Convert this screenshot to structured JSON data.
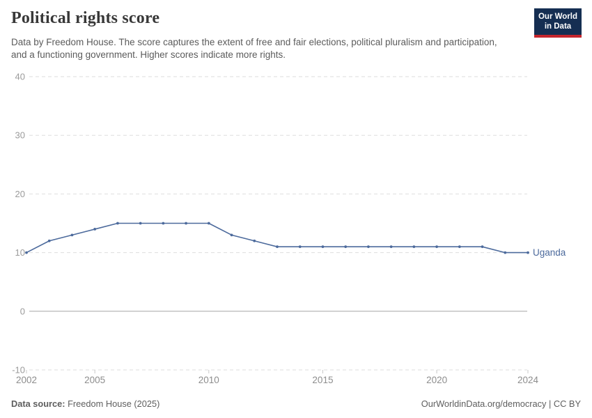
{
  "header": {
    "title": "Political rights score",
    "subtitle": "Data by Freedom House. The score captures the extent of free and fair elections, political pluralism and participation, and a functioning government. Higher scores indicate more rights.",
    "logo": {
      "line1": "Our World",
      "line2": "in Data",
      "bg_color": "#152e52",
      "bar_color": "#c5252d"
    }
  },
  "chart_data": {
    "type": "line",
    "title": "Political rights score",
    "x": [
      2002,
      2003,
      2004,
      2005,
      2006,
      2007,
      2008,
      2009,
      2010,
      2011,
      2012,
      2013,
      2014,
      2015,
      2016,
      2017,
      2018,
      2019,
      2020,
      2021,
      2022,
      2023,
      2024
    ],
    "series": [
      {
        "name": "Uganda",
        "color": "#4c6a9c",
        "values": [
          10,
          12,
          13,
          14,
          15,
          15,
          15,
          15,
          15,
          13,
          12,
          11,
          11,
          11,
          11,
          11,
          11,
          11,
          11,
          11,
          11,
          10,
          10
        ]
      }
    ],
    "xlabel": "",
    "ylabel": "",
    "ylim": [
      -10,
      40
    ],
    "xlim": [
      2002,
      2024
    ],
    "y_ticks": [
      40,
      30,
      20,
      10,
      0,
      -10
    ],
    "x_ticks": [
      2002,
      2005,
      2010,
      2015,
      2020,
      2024
    ],
    "grid": "horizontal-dashed",
    "zero_line": true,
    "legend_position": "end-of-line-label"
  },
  "footer": {
    "source_label": "Data source:",
    "source_value": "Freedom House (2025)",
    "credit": "OurWorldinData.org/democracy | CC BY"
  },
  "colors": {
    "line": "#4c6a9c",
    "grid": "#dedede",
    "zero_line": "#a6a6a6",
    "y_axis_text": "#9b9b9b",
    "x_axis_text": "#8d8d8d",
    "tick_mark": "#c8c8c8",
    "title_text": "#383838",
    "subtitle_text": "#5b5b5b"
  }
}
